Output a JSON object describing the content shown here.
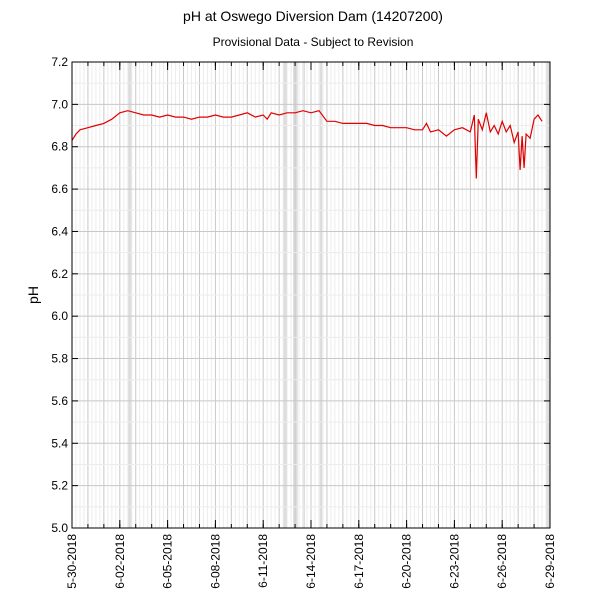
{
  "chart_data": {
    "type": "line",
    "title": "pH at Oswego Diversion Dam (14207200)",
    "subtitle": "Provisional Data - Subject to Revision",
    "ylabel": "pH",
    "xlabel": "",
    "ylim": [
      5.0,
      7.2
    ],
    "xlim": [
      "2018-05-30",
      "2018-06-29"
    ],
    "grid": true,
    "ytick_labels": [
      "5.0",
      "5.2",
      "5.4",
      "5.6",
      "5.8",
      "6.0",
      "6.2",
      "6.4",
      "6.6",
      "6.8",
      "7.0",
      "7.2"
    ],
    "yticks": [
      5.0,
      5.2,
      5.4,
      5.6,
      5.8,
      6.0,
      6.2,
      6.4,
      6.6,
      6.8,
      7.0,
      7.2
    ],
    "xtick_labels": [
      "5-30-2018",
      "6-02-2018",
      "6-05-2018",
      "6-08-2018",
      "6-11-2018",
      "6-14-2018",
      "6-17-2018",
      "6-20-2018",
      "6-23-2018",
      "6-26-2018",
      "6-29-2018"
    ],
    "xticks": [
      "2018-05-30",
      "2018-06-02",
      "2018-06-05",
      "2018-06-08",
      "2018-06-11",
      "2018-06-14",
      "2018-06-17",
      "2018-06-20",
      "2018-06-23",
      "2018-06-26",
      "2018-06-29"
    ],
    "shaded_periods": [
      [
        "2018-06-02 12:00",
        "2018-06-02 18:00"
      ],
      [
        "2018-06-12 06:00",
        "2018-06-12 12:00"
      ],
      [
        "2018-06-12 21:00",
        "2018-06-13 04:00"
      ],
      [
        "2018-06-13 11:00",
        "2018-06-13 15:00"
      ],
      [
        "2018-06-14 13:00",
        "2018-06-14 17:00"
      ],
      [
        "2018-06-28 18:00",
        "2018-06-29 00:00"
      ]
    ],
    "series": [
      {
        "x": [
          "2018-05-30 00:00",
          "2018-05-30 06:00",
          "2018-05-30 12:00",
          "2018-05-31 00:00",
          "2018-05-31 12:00",
          "2018-06-01 00:00",
          "2018-06-01 12:00",
          "2018-06-02 00:00",
          "2018-06-02 12:00",
          "2018-06-03 00:00",
          "2018-06-03 12:00",
          "2018-06-04 00:00",
          "2018-06-04 12:00",
          "2018-06-05 00:00",
          "2018-06-05 12:00",
          "2018-06-06 00:00",
          "2018-06-06 12:00",
          "2018-06-07 00:00",
          "2018-06-07 12:00",
          "2018-06-08 00:00",
          "2018-06-08 12:00",
          "2018-06-09 00:00",
          "2018-06-09 12:00",
          "2018-06-10 00:00",
          "2018-06-10 12:00",
          "2018-06-11 00:00",
          "2018-06-11 06:00",
          "2018-06-11 12:00",
          "2018-06-12 00:00",
          "2018-06-12 12:00",
          "2018-06-13 00:00",
          "2018-06-13 12:00",
          "2018-06-14 00:00",
          "2018-06-14 12:00",
          "2018-06-15 00:00",
          "2018-06-15 12:00",
          "2018-06-16 00:00",
          "2018-06-16 12:00",
          "2018-06-17 00:00",
          "2018-06-17 12:00",
          "2018-06-18 00:00",
          "2018-06-18 12:00",
          "2018-06-19 00:00",
          "2018-06-19 12:00",
          "2018-06-20 00:00",
          "2018-06-20 12:00",
          "2018-06-21 00:00",
          "2018-06-21 06:00",
          "2018-06-21 12:00",
          "2018-06-22 00:00",
          "2018-06-22 12:00",
          "2018-06-23 00:00",
          "2018-06-23 12:00",
          "2018-06-24 00:00",
          "2018-06-24 06:00",
          "2018-06-24 09:00",
          "2018-06-24 12:00",
          "2018-06-24 18:00",
          "2018-06-25 00:00",
          "2018-06-25 06:00",
          "2018-06-25 12:00",
          "2018-06-25 18:00",
          "2018-06-26 00:00",
          "2018-06-26 06:00",
          "2018-06-26 12:00",
          "2018-06-26 18:00",
          "2018-06-27 00:00",
          "2018-06-27 03:00",
          "2018-06-27 06:00",
          "2018-06-27 09:00",
          "2018-06-27 12:00",
          "2018-06-27 18:00",
          "2018-06-28 00:00",
          "2018-06-28 06:00",
          "2018-06-28 12:00"
        ],
        "y": [
          6.83,
          6.86,
          6.88,
          6.89,
          6.9,
          6.91,
          6.93,
          6.96,
          6.97,
          6.96,
          6.95,
          6.95,
          6.94,
          6.95,
          6.94,
          6.94,
          6.93,
          6.94,
          6.94,
          6.95,
          6.94,
          6.94,
          6.95,
          6.96,
          6.94,
          6.95,
          6.93,
          6.96,
          6.95,
          6.96,
          6.96,
          6.97,
          6.96,
          6.97,
          6.92,
          6.92,
          6.91,
          6.91,
          6.91,
          6.91,
          6.9,
          6.9,
          6.89,
          6.89,
          6.89,
          6.88,
          6.88,
          6.91,
          6.87,
          6.88,
          6.85,
          6.88,
          6.89,
          6.87,
          6.95,
          6.65,
          6.93,
          6.88,
          6.96,
          6.87,
          6.9,
          6.86,
          6.92,
          6.87,
          6.9,
          6.82,
          6.87,
          6.69,
          6.85,
          6.7,
          6.86,
          6.84,
          6.93,
          6.95,
          6.92
        ]
      }
    ]
  }
}
